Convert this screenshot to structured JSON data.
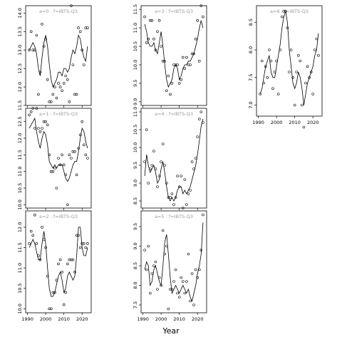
{
  "figure": {
    "xlabel": "Year"
  },
  "chart_data": [
    {
      "type": "scatter",
      "title": "a=0 : f=IBTS-Q3",
      "ylim": [
        11.5,
        14.2
      ],
      "xlim": [
        1989,
        2025
      ],
      "yticks": [
        11.5,
        12.0,
        12.5,
        13.0,
        13.5,
        14.0
      ],
      "yticklabels": [
        "11.5",
        "12.0",
        "12.5",
        "13.0",
        "13.5",
        "14.0"
      ],
      "xticks": [
        1990,
        2000,
        2010,
        2020
      ],
      "xticklabels": [],
      "show_xticklabels": false,
      "x": [
        1991,
        1992,
        1993,
        1994,
        1995,
        1996,
        1997,
        1998,
        1999,
        2000,
        2001,
        2002,
        2003,
        2004,
        2005,
        2006,
        2007,
        2008,
        2009,
        2010,
        2011,
        2012,
        2013,
        2014,
        2015,
        2016,
        2017,
        2018,
        2019,
        2020,
        2021,
        2022,
        2023
      ],
      "observed": [
        13.0,
        13.5,
        13.0,
        13.0,
        13.4,
        11.8,
        12.4,
        13.7,
        13.1,
        13.3,
        12.2,
        11.6,
        11.6,
        11.8,
        12.0,
        11.7,
        12.1,
        12.0,
        11.9,
        12.1,
        12.3,
        12.2,
        11.6,
        14.2,
        12.6,
        11.8,
        11.8,
        13.6,
        13.5,
        13.0,
        12.6,
        13.6,
        13.6
      ],
      "fitted": [
        13.0,
        13.1,
        13.2,
        13.1,
        12.9,
        12.5,
        12.3,
        12.8,
        13.2,
        13.4,
        13.1,
        12.6,
        12.2,
        12.0,
        12.1,
        12.2,
        12.4,
        12.4,
        12.3,
        12.5,
        12.5,
        12.4,
        12.5,
        12.8,
        13.0,
        12.9,
        13.1,
        13.4,
        13.3,
        13.0,
        12.8,
        12.7,
        13.1
      ]
    },
    {
      "type": "scatter",
      "title": "a=3 : f=IBTS-Q3",
      "ylim": [
        8.9,
        11.6
      ],
      "xlim": [
        1989,
        2025
      ],
      "yticks": [
        9.0,
        9.5,
        10.0,
        10.5,
        11.0,
        11.5
      ],
      "yticklabels": [
        "9.0",
        "9.5",
        "10.0",
        "10.5",
        "11.0",
        "11.5"
      ],
      "xticks": [
        1990,
        2000,
        2010,
        2020
      ],
      "xticklabels": [],
      "show_xticklabels": false,
      "x": [
        1991,
        1992,
        1993,
        1994,
        1995,
        1996,
        1997,
        1998,
        1999,
        2000,
        2001,
        2002,
        2003,
        2004,
        2005,
        2006,
        2007,
        2008,
        2009,
        2010,
        2011,
        2012,
        2013,
        2014,
        2015,
        2016,
        2017,
        2018,
        2019,
        2020,
        2021,
        2022,
        2023
      ],
      "observed": [
        11.3,
        10.6,
        10.7,
        11.2,
        11.2,
        10.7,
        10.4,
        10.9,
        11.2,
        10.5,
        10.1,
        10.1,
        9.3,
        9.7,
        9.2,
        9.5,
        10.0,
        10.0,
        10.0,
        9.5,
        9.6,
        10.2,
        9.9,
        10.2,
        10.0,
        10.0,
        10.3,
        10.3,
        10.7,
        11.2,
        10.1,
        11.6,
        11.3
      ],
      "fitted": [
        11.1,
        10.9,
        10.6,
        10.5,
        10.5,
        10.6,
        10.4,
        10.3,
        10.6,
        10.9,
        10.5,
        10.0,
        9.6,
        9.4,
        9.5,
        9.6,
        9.9,
        10.0,
        9.9,
        9.6,
        9.7,
        9.9,
        10.0,
        10.0,
        10.1,
        10.1,
        10.2,
        10.3,
        10.5,
        10.7,
        11.0,
        11.2,
        11.0
      ]
    },
    {
      "type": "scatter",
      "title": "a=6 : f=IBTS-Q3",
      "ylim": [
        6.8,
        8.8
      ],
      "xlim": [
        1989,
        2025
      ],
      "yticks": [
        7.0,
        7.5,
        8.0,
        8.5
      ],
      "yticklabels": [
        "7.0",
        "7.5",
        "8.0",
        "8.5"
      ],
      "xticks": [
        1990,
        2000,
        2010,
        2020
      ],
      "xticklabels": [
        "1990",
        "2000",
        "2010",
        "2020"
      ],
      "show_xticklabels": true,
      "x": [
        1991,
        1992,
        1993,
        1994,
        1995,
        1996,
        1997,
        1998,
        1999,
        2000,
        2001,
        2002,
        2003,
        2004,
        2005,
        2006,
        2007,
        2008,
        2009,
        2010,
        2011,
        2012,
        2013,
        2014,
        2015,
        2016,
        2017,
        2018,
        2019,
        2020,
        2021,
        2022,
        2023
      ],
      "observed": [
        7.2,
        7.8,
        7.4,
        7.7,
        7.5,
        8.0,
        7.8,
        7.3,
        7.6,
        7.8,
        7.2,
        8.0,
        8.6,
        8.7,
        8.7,
        8.4,
        7.6,
        8.0,
        7.5,
        7.0,
        7.6,
        7.9,
        7.8,
        7.0,
        6.6,
        7.4,
        7.7,
        7.5,
        7.6,
        7.2,
        8.0,
        8.2,
        7.9
      ],
      "fitted": [
        7.2,
        7.3,
        7.5,
        7.7,
        7.8,
        7.9,
        7.6,
        7.5,
        7.5,
        7.7,
        7.9,
        8.1,
        8.4,
        8.6,
        8.7,
        8.5,
        8.0,
        7.7,
        7.4,
        7.3,
        7.4,
        7.6,
        7.5,
        7.3,
        7.0,
        7.2,
        7.4,
        7.5,
        7.6,
        7.7,
        7.9,
        8.0,
        8.3
      ]
    },
    {
      "type": "scatter",
      "title": "a=1 : f=IBTS-Q3",
      "ylim": [
        9.9,
        12.9
      ],
      "xlim": [
        1989,
        2025
      ],
      "yticks": [
        10.0,
        10.5,
        11.0,
        11.5,
        12.0,
        12.5
      ],
      "yticklabels": [
        "10.0",
        "10.5",
        "11.0",
        "11.5",
        "12.0",
        "12.5"
      ],
      "xticks": [
        1990,
        2000,
        2010,
        2020
      ],
      "xticklabels": [],
      "show_xticklabels": false,
      "x": [
        1991,
        1992,
        1993,
        1994,
        1995,
        1996,
        1997,
        1998,
        1999,
        2000,
        2001,
        2002,
        2003,
        2004,
        2005,
        2006,
        2007,
        2008,
        2009,
        2010,
        2011,
        2012,
        2013,
        2014,
        2015,
        2016,
        2017,
        2018,
        2019,
        2020,
        2021,
        2022,
        2023
      ],
      "observed": [
        12.7,
        12.8,
        12.9,
        12.3,
        12.9,
        12.3,
        12.2,
        12.3,
        12.5,
        12.5,
        12.4,
        11.5,
        11.0,
        11.0,
        11.1,
        10.5,
        11.4,
        11.2,
        11.5,
        11.2,
        10.9,
        10.0,
        11.5,
        11.4,
        11.6,
        11.6,
        10.9,
        11.7,
        12.1,
        12.5,
        11.8,
        11.5,
        11.4
      ],
      "fitted": [
        12.3,
        12.4,
        12.5,
        12.6,
        12.2,
        11.9,
        11.7,
        12.0,
        12.2,
        12.1,
        11.8,
        11.3,
        11.2,
        11.1,
        11.2,
        11.1,
        11.2,
        11.2,
        11.2,
        11.0,
        10.8,
        10.7,
        10.8,
        11.0,
        11.2,
        11.3,
        11.3,
        11.6,
        12.0,
        12.3,
        12.2,
        11.9,
        11.7
      ]
    },
    {
      "type": "scatter",
      "title": "a=4 : f=IBTS-Q3",
      "ylim": [
        8.3,
        11.1
      ],
      "xlim": [
        1989,
        2025
      ],
      "yticks": [
        8.5,
        9.0,
        9.5,
        10.0,
        10.5,
        11.0
      ],
      "yticklabels": [
        "8.5",
        "9.0",
        "9.5",
        "10.0",
        "10.5",
        "11.0"
      ],
      "xticks": [
        1990,
        2000,
        2010,
        2020
      ],
      "xticklabels": [],
      "show_xticklabels": false,
      "x": [
        1991,
        1992,
        1993,
        1994,
        1995,
        1996,
        1997,
        1998,
        1999,
        2000,
        2001,
        2002,
        2003,
        2004,
        2005,
        2006,
        2007,
        2008,
        2009,
        2010,
        2011,
        2012,
        2013,
        2014,
        2015,
        2016,
        2017,
        2018,
        2019,
        2020,
        2021,
        2022,
        2023
      ],
      "observed": [
        9.6,
        10.5,
        9.0,
        9.4,
        9.5,
        9.9,
        9.4,
        8.9,
        9.2,
        9.6,
        10.1,
        9.5,
        9.0,
        8.6,
        8.6,
        8.7,
        8.4,
        8.6,
        9.2,
        8.9,
        9.2,
        8.3,
        9.1,
        8.4,
        8.7,
        8.8,
        9.6,
        9.4,
        9.7,
        10.3,
        10.8,
        11.0,
        10.7
      ],
      "fitted": [
        9.2,
        9.8,
        9.5,
        9.3,
        9.4,
        9.5,
        9.3,
        9.0,
        9.1,
        9.4,
        9.6,
        9.3,
        8.9,
        8.6,
        8.5,
        8.6,
        8.5,
        8.6,
        8.8,
        8.9,
        8.9,
        8.7,
        8.8,
        8.7,
        8.8,
        8.9,
        9.1,
        9.3,
        9.5,
        9.8,
        10.2,
        10.6,
        10.8
      ]
    },
    {
      "type": "scatter",
      "title": "a=2 : f=IBTS-Q3",
      "ylim": [
        9.9,
        12.4
      ],
      "xlim": [
        1989,
        2025
      ],
      "yticks": [
        10.0,
        10.5,
        11.0,
        11.5,
        12.0
      ],
      "yticklabels": [
        "10.0",
        "10.5",
        "11.0",
        "11.5",
        "12.0"
      ],
      "xticks": [
        1990,
        2000,
        2010,
        2020
      ],
      "xticklabels": [
        "1990",
        "2000",
        "2010",
        "2020"
      ],
      "show_xticklabels": true,
      "x": [
        1991,
        1992,
        1993,
        1994,
        1995,
        1996,
        1997,
        1998,
        1999,
        2000,
        2001,
        2002,
        2003,
        2004,
        2005,
        2006,
        2007,
        2008,
        2009,
        2010,
        2011,
        2012,
        2013,
        2014,
        2015,
        2016,
        2017,
        2018,
        2019,
        2020,
        2021,
        2022,
        2023
      ],
      "observed": [
        11.6,
        11.9,
        11.8,
        12.3,
        11.6,
        11.3,
        11.2,
        12.0,
        11.7,
        11.5,
        10.8,
        10.0,
        10.0,
        10.4,
        10.4,
        10.7,
        11.1,
        11.2,
        10.9,
        10.1,
        10.4,
        11.1,
        11.2,
        11.2,
        11.2,
        10.9,
        11.8,
        11.8,
        11.5,
        11.6,
        11.6,
        11.5,
        11.6
      ],
      "fitted": [
        11.5,
        11.6,
        11.7,
        11.6,
        11.4,
        11.2,
        11.2,
        11.6,
        11.9,
        11.6,
        11.0,
        10.5,
        10.3,
        10.3,
        10.4,
        10.6,
        10.8,
        10.9,
        10.7,
        10.4,
        10.5,
        10.8,
        10.9,
        10.8,
        10.7,
        10.8,
        11.3,
        12.0,
        12.0,
        11.5,
        11.3,
        11.3,
        11.5
      ]
    },
    {
      "type": "scatter",
      "title": "a=5 : f=IBTS-Q3",
      "ylim": [
        7.3,
        9.9
      ],
      "xlim": [
        1989,
        2025
      ],
      "yticks": [
        7.5,
        8.0,
        8.5,
        9.0,
        9.5
      ],
      "yticklabels": [
        "7.5",
        "8.0",
        "8.5",
        "9.0",
        "9.5"
      ],
      "xticks": [
        1990,
        2000,
        2010,
        2020
      ],
      "xticklabels": [
        "1990",
        "2000",
        "2010",
        "2020"
      ],
      "show_xticklabels": true,
      "x": [
        1991,
        1992,
        1993,
        1994,
        1995,
        1996,
        1997,
        1998,
        1999,
        2000,
        2001,
        2002,
        2003,
        2004,
        2005,
        2006,
        2007,
        2008,
        2009,
        2010,
        2011,
        2012,
        2013,
        2014,
        2015,
        2016,
        2017,
        2018,
        2019,
        2020,
        2021,
        2022,
        2023
      ],
      "observed": [
        8.9,
        8.4,
        9.0,
        7.8,
        8.3,
        8.5,
        8.6,
        7.9,
        8.2,
        8.0,
        9.4,
        8.8,
        9.0,
        7.4,
        7.9,
        7.9,
        8.1,
        8.4,
        7.8,
        7.7,
        8.2,
        8.1,
        7.8,
        8.1,
        8.8,
        7.6,
        8.3,
        7.5,
        8.4,
        8.2,
        8.4,
        8.9,
        9.8
      ],
      "fitted": [
        8.4,
        8.6,
        8.5,
        8.0,
        8.1,
        8.4,
        8.5,
        8.3,
        8.1,
        8.0,
        8.5,
        9.1,
        9.3,
        8.8,
        8.2,
        7.8,
        7.9,
        8.0,
        7.9,
        7.8,
        7.9,
        8.0,
        7.9,
        7.8,
        7.9,
        7.7,
        7.6,
        7.8,
        8.0,
        8.3,
        8.5,
        8.8,
        9.6
      ]
    }
  ]
}
